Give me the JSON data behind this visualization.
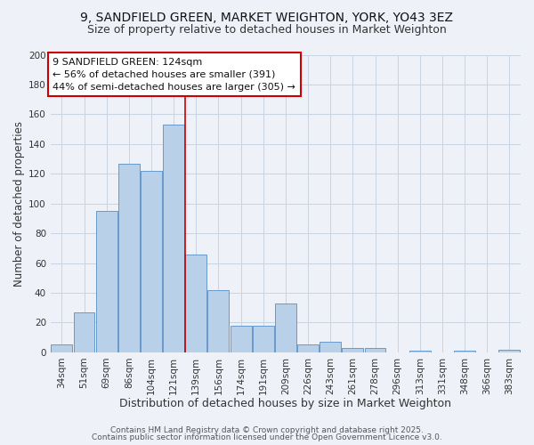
{
  "title": "9, SANDFIELD GREEN, MARKET WEIGHTON, YORK, YO43 3EZ",
  "subtitle": "Size of property relative to detached houses in Market Weighton",
  "xlabel": "Distribution of detached houses by size in Market Weighton",
  "ylabel": "Number of detached properties",
  "categories": [
    "34sqm",
    "51sqm",
    "69sqm",
    "86sqm",
    "104sqm",
    "121sqm",
    "139sqm",
    "156sqm",
    "174sqm",
    "191sqm",
    "209sqm",
    "226sqm",
    "243sqm",
    "261sqm",
    "278sqm",
    "296sqm",
    "313sqm",
    "331sqm",
    "348sqm",
    "366sqm",
    "383sqm"
  ],
  "values": [
    5,
    27,
    95,
    127,
    122,
    153,
    66,
    42,
    18,
    18,
    33,
    5,
    7,
    3,
    3,
    0,
    1,
    0,
    1,
    0,
    2
  ],
  "bar_color": "#b8d0e8",
  "bar_edge_color": "#6699cc",
  "vline_index": 5,
  "vline_color": "#cc0000",
  "ylim": [
    0,
    200
  ],
  "yticks": [
    0,
    20,
    40,
    60,
    80,
    100,
    120,
    140,
    160,
    180,
    200
  ],
  "annotation_title": "9 SANDFIELD GREEN: 124sqm",
  "annotation_line1": "← 56% of detached houses are smaller (391)",
  "annotation_line2": "44% of semi-detached houses are larger (305) →",
  "annotation_box_color": "#ffffff",
  "annotation_box_edge": "#cc0000",
  "background_color": "#eef2f8",
  "grid_color": "#c8d4e0",
  "footer1": "Contains HM Land Registry data © Crown copyright and database right 2025.",
  "footer2": "Contains public sector information licensed under the Open Government Licence v3.0.",
  "title_fontsize": 10,
  "subtitle_fontsize": 9,
  "xlabel_fontsize": 9,
  "ylabel_fontsize": 8.5,
  "tick_fontsize": 7.5,
  "annotation_fontsize": 8,
  "footer_fontsize": 6.5
}
